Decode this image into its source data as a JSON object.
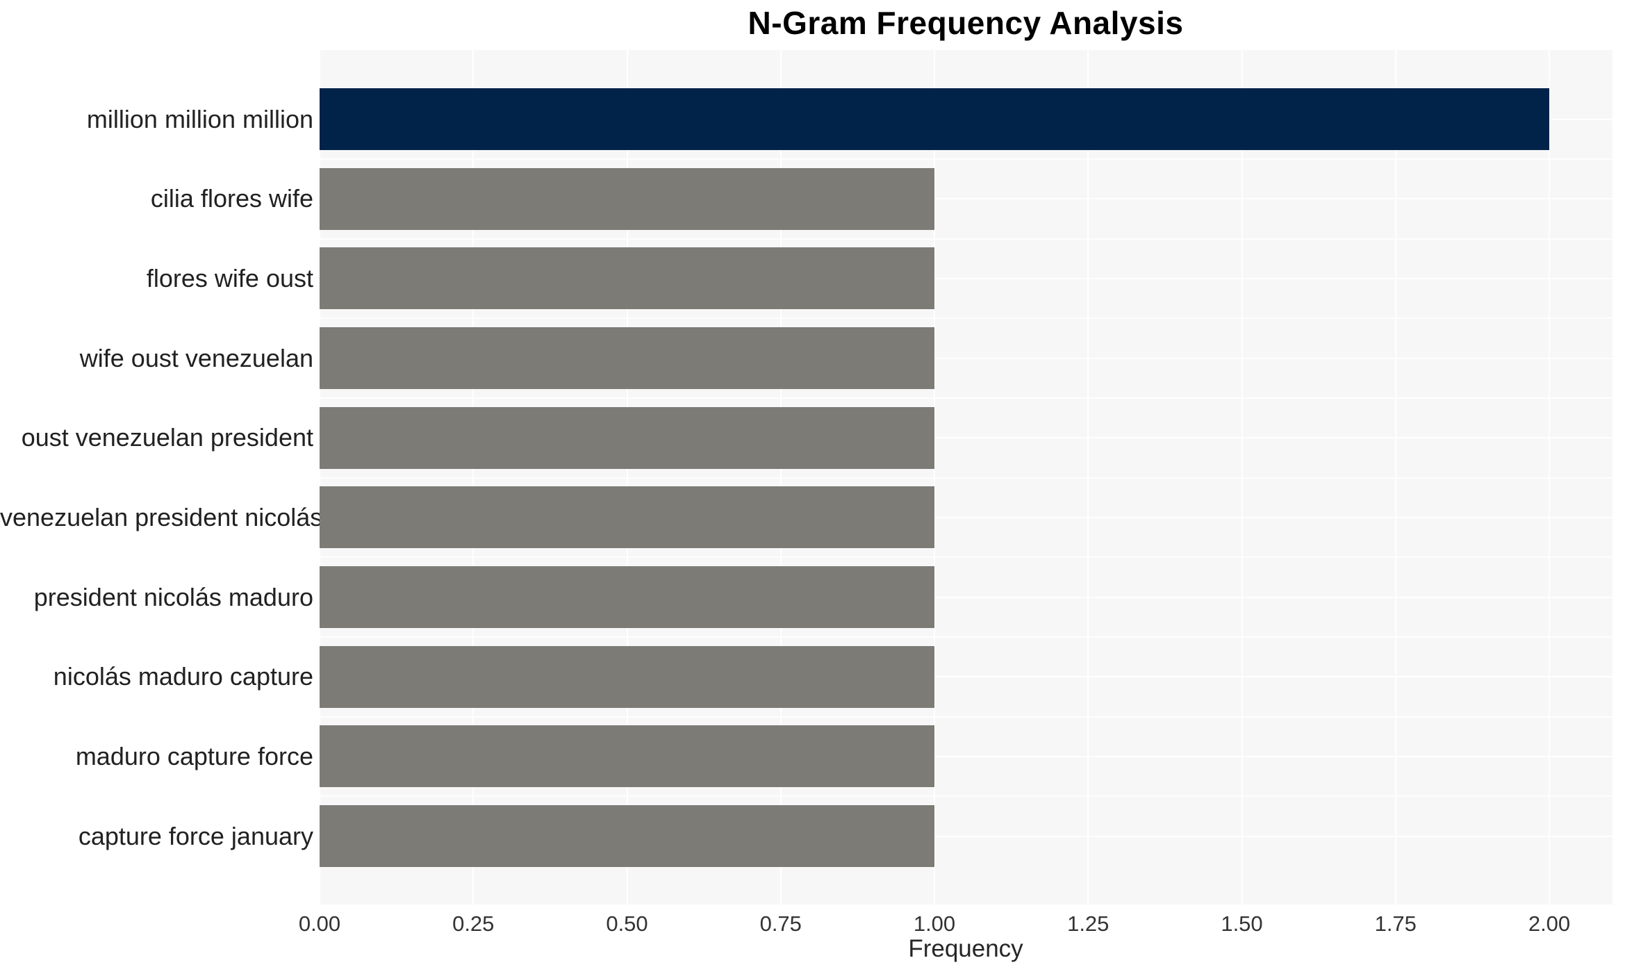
{
  "chart_data": {
    "type": "bar",
    "orientation": "horizontal",
    "title": "N-Gram Frequency Analysis",
    "xlabel": "Frequency",
    "ylabel": "",
    "categories": [
      "million million million",
      "cilia flores wife",
      "flores wife oust",
      "wife oust venezuelan",
      "oust venezuelan president",
      "venezuelan president nicolás",
      "president nicolás maduro",
      "nicolás maduro capture",
      "maduro capture force",
      "capture force january"
    ],
    "values": [
      2,
      1,
      1,
      1,
      1,
      1,
      1,
      1,
      1,
      1
    ],
    "bar_colors": [
      "#022349",
      "#7d7b76",
      "#7d7b76",
      "#7d7b76",
      "#7d7b76",
      "#7d7b76",
      "#7d7b76",
      "#7d7b76",
      "#7d7b76",
      "#7d7b76"
    ],
    "xlim": [
      0,
      2.1
    ],
    "xticks": [
      0.0,
      0.25,
      0.5,
      0.75,
      1.0,
      1.25,
      1.5,
      1.75,
      2.0
    ],
    "xtick_labels": [
      "0.00",
      "0.25",
      "0.50",
      "0.75",
      "1.00",
      "1.25",
      "1.50",
      "1.75",
      "2.00"
    ],
    "grid": true,
    "legend": false,
    "colors": {
      "plot_background": "#f7f7f7",
      "figure_background": "#ffffff",
      "grid_color": "#ffffff",
      "highlight_bar": "#022349",
      "default_bar": "#7d7b76",
      "title_text": "#000000",
      "tick_text": "#333333",
      "label_text": "#212121"
    }
  }
}
